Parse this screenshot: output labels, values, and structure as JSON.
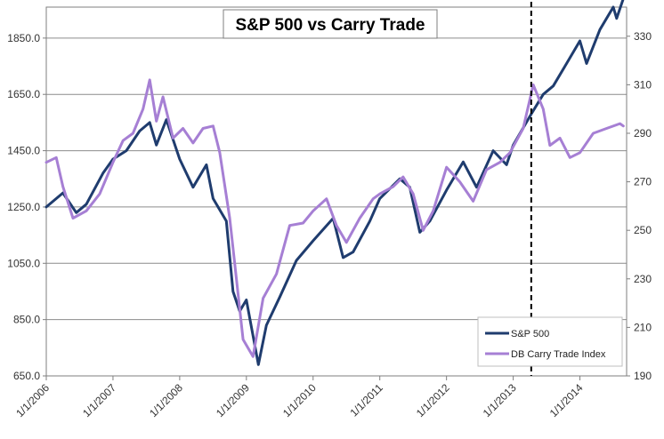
{
  "chart_data": {
    "type": "line",
    "title": "S&P 500 vs Carry Trade",
    "x": [
      "1/1/2006",
      "1/1/2007",
      "1/1/2008",
      "1/1/2009",
      "1/1/2010",
      "1/1/2011",
      "1/1/2012",
      "1/1/2013",
      "1/1/2014"
    ],
    "x_range": [
      2006.0,
      2014.7
    ],
    "y_left": {
      "ticks": [
        "650.0",
        "850.0",
        "1050.0",
        "1250.0",
        "1450.0",
        "1650.0",
        "1850.0"
      ],
      "range": [
        650,
        1960
      ]
    },
    "y_right": {
      "ticks": [
        "190",
        "210",
        "230",
        "250",
        "270",
        "290",
        "310",
        "330"
      ],
      "range": [
        190,
        342
      ]
    },
    "grid": true,
    "vertical_marker": {
      "x": 2013.27,
      "style": "dashed"
    },
    "series": [
      {
        "name": "S&P 500",
        "axis": "left",
        "color": "#1f3c6e",
        "points": [
          [
            2006.0,
            1250
          ],
          [
            2006.25,
            1300
          ],
          [
            2006.45,
            1230
          ],
          [
            2006.6,
            1260
          ],
          [
            2006.85,
            1370
          ],
          [
            2007.0,
            1420
          ],
          [
            2007.2,
            1450
          ],
          [
            2007.4,
            1520
          ],
          [
            2007.55,
            1550
          ],
          [
            2007.65,
            1470
          ],
          [
            2007.8,
            1560
          ],
          [
            2008.0,
            1420
          ],
          [
            2008.2,
            1320
          ],
          [
            2008.4,
            1400
          ],
          [
            2008.5,
            1280
          ],
          [
            2008.7,
            1200
          ],
          [
            2008.8,
            950
          ],
          [
            2008.9,
            880
          ],
          [
            2009.0,
            920
          ],
          [
            2009.18,
            690
          ],
          [
            2009.3,
            830
          ],
          [
            2009.5,
            930
          ],
          [
            2009.75,
            1060
          ],
          [
            2010.0,
            1130
          ],
          [
            2010.3,
            1210
          ],
          [
            2010.45,
            1070
          ],
          [
            2010.6,
            1090
          ],
          [
            2010.85,
            1200
          ],
          [
            2011.0,
            1280
          ],
          [
            2011.3,
            1350
          ],
          [
            2011.45,
            1320
          ],
          [
            2011.6,
            1160
          ],
          [
            2011.75,
            1200
          ],
          [
            2012.0,
            1310
          ],
          [
            2012.25,
            1410
          ],
          [
            2012.45,
            1320
          ],
          [
            2012.7,
            1450
          ],
          [
            2012.9,
            1400
          ],
          [
            2013.0,
            1470
          ],
          [
            2013.27,
            1580
          ],
          [
            2013.45,
            1650
          ],
          [
            2013.6,
            1680
          ],
          [
            2013.8,
            1760
          ],
          [
            2014.0,
            1840
          ],
          [
            2014.1,
            1760
          ],
          [
            2014.3,
            1880
          ],
          [
            2014.5,
            1960
          ],
          [
            2014.55,
            1920
          ],
          [
            2014.65,
            1990
          ]
        ]
      },
      {
        "name": "DB Carry Trade Index",
        "axis": "right",
        "color": "#a67fd4",
        "points": [
          [
            2006.0,
            278
          ],
          [
            2006.15,
            280
          ],
          [
            2006.25,
            268
          ],
          [
            2006.4,
            255
          ],
          [
            2006.6,
            258
          ],
          [
            2006.8,
            265
          ],
          [
            2007.0,
            278
          ],
          [
            2007.15,
            287
          ],
          [
            2007.3,
            290
          ],
          [
            2007.45,
            300
          ],
          [
            2007.55,
            312
          ],
          [
            2007.65,
            295
          ],
          [
            2007.75,
            305
          ],
          [
            2007.9,
            288
          ],
          [
            2008.05,
            292
          ],
          [
            2008.2,
            286
          ],
          [
            2008.35,
            292
          ],
          [
            2008.5,
            293
          ],
          [
            2008.6,
            282
          ],
          [
            2008.75,
            255
          ],
          [
            2008.85,
            230
          ],
          [
            2008.95,
            205
          ],
          [
            2009.1,
            198
          ],
          [
            2009.25,
            222
          ],
          [
            2009.45,
            232
          ],
          [
            2009.65,
            252
          ],
          [
            2009.85,
            253
          ],
          [
            2010.0,
            258
          ],
          [
            2010.2,
            263
          ],
          [
            2010.35,
            252
          ],
          [
            2010.5,
            245
          ],
          [
            2010.7,
            255
          ],
          [
            2010.9,
            263
          ],
          [
            2011.0,
            265
          ],
          [
            2011.2,
            268
          ],
          [
            2011.35,
            272
          ],
          [
            2011.5,
            265
          ],
          [
            2011.65,
            250
          ],
          [
            2011.8,
            258
          ],
          [
            2012.0,
            276
          ],
          [
            2012.2,
            270
          ],
          [
            2012.4,
            262
          ],
          [
            2012.6,
            275
          ],
          [
            2012.8,
            278
          ],
          [
            2012.95,
            282
          ],
          [
            2013.15,
            292
          ],
          [
            2013.3,
            310
          ],
          [
            2013.45,
            300
          ],
          [
            2013.55,
            285
          ],
          [
            2013.7,
            288
          ],
          [
            2013.85,
            280
          ],
          [
            2014.0,
            282
          ],
          [
            2014.2,
            290
          ],
          [
            2014.4,
            292
          ],
          [
            2014.6,
            294
          ],
          [
            2014.65,
            293
          ]
        ]
      }
    ],
    "legend": {
      "position": "bottom-right",
      "entries": [
        "S&P 500",
        "DB Carry Trade Index"
      ]
    }
  }
}
